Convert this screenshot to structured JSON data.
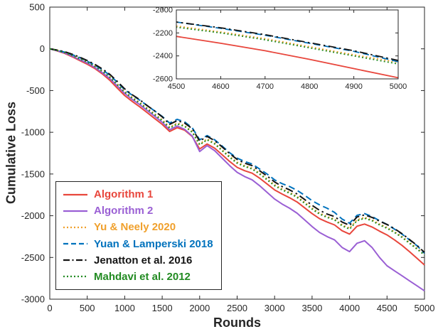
{
  "chart_data": {
    "type": "line",
    "title": "",
    "xlabel": "Rounds",
    "ylabel": "Cumulative Loss",
    "xlim": [
      0,
      5000
    ],
    "ylim": [
      -3000,
      500
    ],
    "xticks": [
      0,
      500,
      1000,
      1500,
      2000,
      2500,
      3000,
      3500,
      4000,
      4500,
      5000
    ],
    "yticks": [
      500,
      0,
      -500,
      -1000,
      -1500,
      -2000,
      -2500,
      -3000
    ],
    "grid": false,
    "legend_position": "bottom-left",
    "frame_color": "#262626",
    "x": [
      0,
      100,
      200,
      300,
      400,
      500,
      600,
      700,
      800,
      900,
      1000,
      1100,
      1200,
      1300,
      1400,
      1500,
      1600,
      1700,
      1800,
      1900,
      2000,
      2100,
      2200,
      2300,
      2400,
      2500,
      2600,
      2700,
      2800,
      2900,
      3000,
      3100,
      3200,
      3300,
      3400,
      3500,
      3600,
      3700,
      3800,
      3900,
      4000,
      4100,
      4200,
      4300,
      4400,
      4500,
      4600,
      4700,
      4800,
      4900,
      5000
    ],
    "series": [
      {
        "name": "Algorithm 1",
        "color": "#e8463c",
        "style": "solid",
        "values": [
          0,
          -25,
          -55,
          -95,
          -140,
          -185,
          -235,
          -300,
          -375,
          -470,
          -560,
          -630,
          -695,
          -765,
          -835,
          -905,
          -990,
          -945,
          -975,
          -1050,
          -1200,
          -1140,
          -1190,
          -1270,
          -1350,
          -1420,
          -1460,
          -1490,
          -1550,
          -1620,
          -1690,
          -1740,
          -1785,
          -1835,
          -1905,
          -1975,
          -2035,
          -2075,
          -2110,
          -2180,
          -2220,
          -2125,
          -2100,
          -2135,
          -2185,
          -2230,
          -2290,
          -2355,
          -2430,
          -2510,
          -2590
        ]
      },
      {
        "name": "Algorithm 2",
        "color": "#9a5fd4",
        "style": "solid",
        "values": [
          0,
          -22,
          -50,
          -88,
          -130,
          -170,
          -222,
          -285,
          -355,
          -445,
          -535,
          -605,
          -668,
          -738,
          -808,
          -880,
          -970,
          -925,
          -965,
          -1045,
          -1230,
          -1160,
          -1220,
          -1310,
          -1400,
          -1480,
          -1530,
          -1570,
          -1640,
          -1720,
          -1800,
          -1860,
          -1910,
          -1970,
          -2050,
          -2130,
          -2200,
          -2250,
          -2290,
          -2380,
          -2430,
          -2330,
          -2300,
          -2380,
          -2500,
          -2600,
          -2660,
          -2720,
          -2780,
          -2840,
          -2900
        ]
      },
      {
        "name": "Yu & Neely 2020",
        "color": "#f0a02c",
        "style": "dotted",
        "values": [
          0,
          -15,
          -40,
          -75,
          -112,
          -152,
          -200,
          -262,
          -330,
          -420,
          -510,
          -580,
          -642,
          -710,
          -780,
          -850,
          -938,
          -890,
          -920,
          -990,
          -1140,
          -1080,
          -1130,
          -1210,
          -1288,
          -1358,
          -1400,
          -1430,
          -1490,
          -1558,
          -1628,
          -1678,
          -1720,
          -1768,
          -1838,
          -1908,
          -1968,
          -2010,
          -2040,
          -2108,
          -2148,
          -2050,
          -2020,
          -2050,
          -2100,
          -2140,
          -2192,
          -2250,
          -2320,
          -2390,
          -2455
        ]
      },
      {
        "name": "Yuan & Lamperski 2018",
        "color": "#0072bd",
        "style": "dashed",
        "values": [
          0,
          -18,
          -40,
          -70,
          -105,
          -148,
          -195,
          -250,
          -315,
          -400,
          -490,
          -555,
          -615,
          -680,
          -745,
          -810,
          -890,
          -845,
          -875,
          -945,
          -1090,
          -1040,
          -1090,
          -1165,
          -1245,
          -1310,
          -1350,
          -1380,
          -1440,
          -1500,
          -1570,
          -1615,
          -1650,
          -1695,
          -1755,
          -1820,
          -1870,
          -1910,
          -1960,
          -2040,
          -2090,
          -1995,
          -1975,
          -2010,
          -2060,
          -2105,
          -2160,
          -2220,
          -2290,
          -2360,
          -2450
        ]
      },
      {
        "name": "Jenatton et al. 2016",
        "color": "#141414",
        "style": "dashdot",
        "values": [
          0,
          -15,
          -35,
          -65,
          -100,
          -140,
          -185,
          -240,
          -305,
          -390,
          -480,
          -550,
          -610,
          -680,
          -745,
          -815,
          -905,
          -860,
          -890,
          -955,
          -1105,
          -1050,
          -1100,
          -1175,
          -1255,
          -1325,
          -1370,
          -1400,
          -1460,
          -1525,
          -1595,
          -1650,
          -1690,
          -1740,
          -1805,
          -1875,
          -1935,
          -1980,
          -2010,
          -2075,
          -2115,
          -2015,
          -1990,
          -2020,
          -2065,
          -2105,
          -2155,
          -2215,
          -2285,
          -2355,
          -2440
        ]
      },
      {
        "name": "Mahdavi et al. 2012",
        "color": "#228b22",
        "style": "dotted",
        "values": [
          0,
          -20,
          -45,
          -80,
          -120,
          -160,
          -210,
          -270,
          -340,
          -430,
          -520,
          -590,
          -650,
          -720,
          -790,
          -860,
          -950,
          -900,
          -930,
          -1000,
          -1150,
          -1090,
          -1140,
          -1220,
          -1300,
          -1370,
          -1410,
          -1440,
          -1500,
          -1570,
          -1640,
          -1690,
          -1730,
          -1780,
          -1850,
          -1920,
          -1980,
          -2020,
          -2050,
          -2120,
          -2160,
          -2060,
          -2030,
          -2060,
          -2110,
          -2150,
          -2200,
          -2260,
          -2330,
          -2400,
          -2470
        ]
      }
    ],
    "inset": {
      "xlim": [
        4500,
        5000
      ],
      "ylim": [
        -2600,
        -2000
      ],
      "xticks": [
        4500,
        4600,
        4700,
        4800,
        4900,
        5000
      ],
      "yticks": [
        -2000,
        -2200,
        -2400,
        -2600
      ]
    }
  }
}
